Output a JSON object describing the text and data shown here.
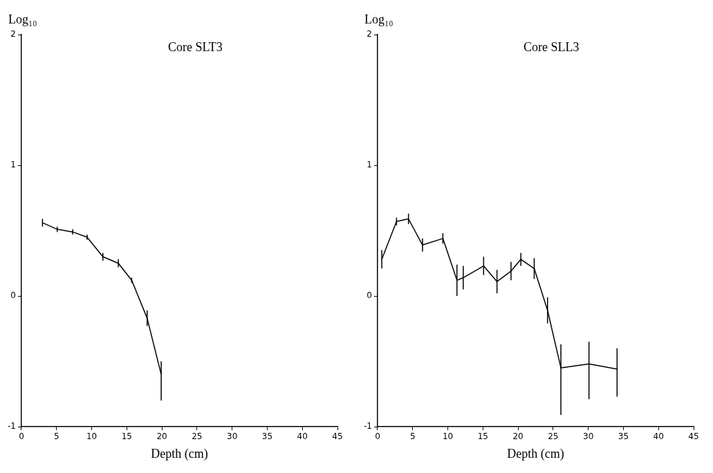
{
  "chart_data": [
    {
      "type": "line",
      "title": "Core SLT3",
      "xlabel": "Depth (cm)",
      "ylabel": "Log₁₀",
      "xlim": [
        0,
        45
      ],
      "ylim": [
        -1,
        2
      ],
      "xticks": [
        0,
        5,
        10,
        15,
        20,
        25,
        30,
        35,
        40,
        45
      ],
      "yticks": [
        -1,
        0,
        1,
        2
      ],
      "grid": false,
      "legend": false,
      "marker": "none",
      "x": [
        3.0,
        5.1,
        7.3,
        9.35,
        11.6,
        13.8,
        15.7,
        17.9,
        19.9
      ],
      "series": [
        {
          "color": "#000000",
          "values": [
            0.56,
            0.51,
            0.49,
            0.45,
            0.3,
            0.25,
            0.12,
            -0.17,
            -0.6
          ],
          "errors": [
            0.03,
            0.02,
            0.02,
            0.02,
            0.03,
            0.03,
            0.02,
            0.06,
            [
              -0.8,
              -0.5
            ]
          ]
        }
      ]
    },
    {
      "type": "line",
      "title": "Core SLL3",
      "xlabel": "Depth (cm)",
      "ylabel": "Log₁₀",
      "xlim": [
        0,
        45
      ],
      "ylim": [
        -1,
        2
      ],
      "xticks": [
        0,
        5,
        10,
        15,
        20,
        25,
        30,
        35,
        40,
        45
      ],
      "yticks": [
        -1,
        0,
        1,
        2
      ],
      "grid": false,
      "legend": false,
      "marker": "none",
      "x": [
        0.6,
        2.7,
        4.4,
        6.4,
        9.3,
        11.3,
        12.2,
        15.1,
        17.0,
        19.0,
        20.4,
        22.3,
        24.2,
        26.1,
        30.1,
        34.1
      ],
      "series": [
        {
          "color": "#000000",
          "values": [
            0.28,
            0.57,
            0.59,
            0.39,
            0.44,
            0.12,
            0.14,
            0.23,
            0.11,
            0.19,
            0.28,
            0.21,
            -0.11,
            -0.55,
            -0.52,
            -0.56
          ],
          "errors": [
            0.07,
            0.03,
            0.04,
            0.05,
            0.04,
            0.12,
            0.09,
            0.07,
            0.09,
            0.07,
            0.05,
            0.08,
            0.1,
            [
              -0.91,
              -0.37
            ],
            [
              -0.79,
              -0.35
            ],
            [
              -0.77,
              -0.4
            ]
          ]
        }
      ]
    }
  ]
}
